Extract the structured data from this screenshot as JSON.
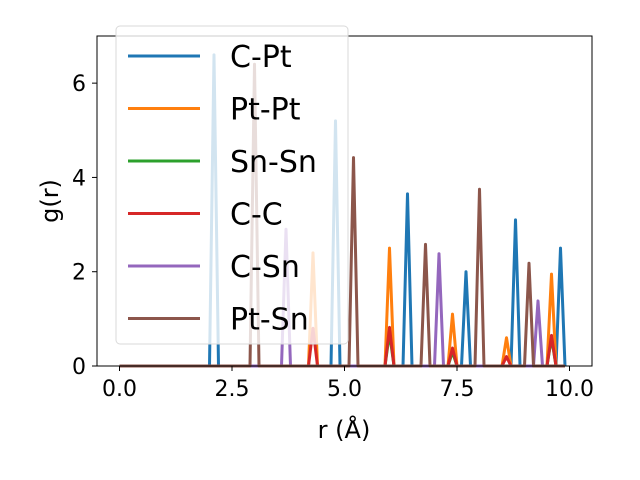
{
  "chart_data": {
    "type": "line",
    "title": "",
    "xlabel": "r (Å)",
    "ylabel": "g(r)",
    "xlim": [
      -0.5,
      10.5
    ],
    "ylim": [
      0,
      7
    ],
    "xticks": [
      0.0,
      2.5,
      5.0,
      7.5,
      10.0
    ],
    "xtick_labels": [
      "0.0",
      "2.5",
      "5.0",
      "7.5",
      "10.0"
    ],
    "yticks": [
      0,
      2,
      4,
      6
    ],
    "ytick_labels": [
      "0",
      "2",
      "4",
      "6"
    ],
    "grid": false,
    "legend_position": "upper-left",
    "series": [
      {
        "name": "C-Pt",
        "color": "#1f77b4",
        "peaks": [
          [
            2.1,
            6.6
          ],
          [
            4.8,
            5.2
          ],
          [
            6.4,
            3.65
          ],
          [
            7.7,
            2.0
          ],
          [
            8.8,
            3.1
          ],
          [
            9.8,
            2.5
          ]
        ]
      },
      {
        "name": "Pt-Pt",
        "color": "#ff7f0e",
        "peaks": [
          [
            4.3,
            2.4
          ],
          [
            6.0,
            2.5
          ],
          [
            7.4,
            1.1
          ],
          [
            8.6,
            0.6
          ],
          [
            9.6,
            1.95
          ]
        ]
      },
      {
        "name": "Sn-Sn",
        "color": "#2ca02c",
        "peaks": [
          [
            6.0,
            0.7
          ],
          [
            7.4,
            0.3
          ],
          [
            9.6,
            0.6
          ]
        ]
      },
      {
        "name": "C-C",
        "color": "#d62728",
        "peaks": [
          [
            4.3,
            0.8
          ],
          [
            6.0,
            0.82
          ],
          [
            7.4,
            0.38
          ],
          [
            8.6,
            0.2
          ],
          [
            9.6,
            0.65
          ]
        ]
      },
      {
        "name": "C-Sn",
        "color": "#9467bd",
        "peaks": [
          [
            3.7,
            2.9
          ],
          [
            7.1,
            2.38
          ],
          [
            9.3,
            1.38
          ]
        ]
      },
      {
        "name": "Pt-Sn",
        "color": "#8c564b",
        "peaks": [
          [
            3.0,
            6.4
          ],
          [
            5.2,
            4.42
          ],
          [
            6.8,
            2.58
          ],
          [
            8.0,
            3.75
          ],
          [
            9.1,
            2.18
          ]
        ]
      }
    ]
  }
}
